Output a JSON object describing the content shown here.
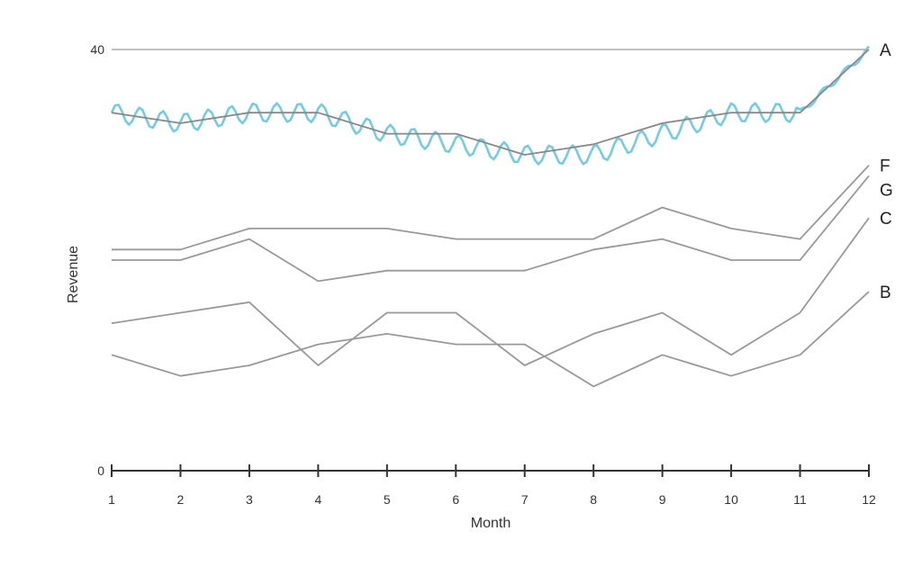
{
  "chart_data": {
    "type": "line",
    "xlabel": "Month",
    "ylabel": "Revenue",
    "xlim": [
      1,
      12
    ],
    "ylim": [
      0,
      40
    ],
    "x_ticks": [
      1,
      2,
      3,
      4,
      5,
      6,
      7,
      8,
      9,
      10,
      11,
      12
    ],
    "y_ticks": [
      0,
      40
    ],
    "grid": false,
    "legend": "none",
    "categories": [
      1,
      2,
      3,
      4,
      5,
      6,
      7,
      8,
      9,
      10,
      11,
      12
    ],
    "series": [
      {
        "name": "A",
        "color": "#888888",
        "values": [
          34,
          33,
          34,
          34,
          32,
          32,
          30,
          31,
          33,
          34,
          34,
          40
        ]
      },
      {
        "name": "F",
        "color": "#999999",
        "values": [
          21,
          21,
          23,
          23,
          23,
          22,
          22,
          22,
          25,
          23,
          22,
          29
        ]
      },
      {
        "name": "G",
        "color": "#999999",
        "values": [
          20,
          20,
          22,
          18,
          19,
          19,
          19,
          21,
          22,
          20,
          20,
          28
        ]
      },
      {
        "name": "C",
        "color": "#999999",
        "values": [
          14,
          15,
          16,
          10,
          15,
          15,
          10,
          13,
          15,
          11,
          15,
          24
        ]
      },
      {
        "name": "B",
        "color": "#999999",
        "values": [
          11,
          9,
          10,
          12,
          13,
          12,
          12,
          8,
          11,
          9,
          11,
          17
        ]
      }
    ],
    "overlay": {
      "color": "#5bc3dd",
      "values": [
        34,
        33,
        34,
        34,
        32,
        31,
        30,
        30,
        32,
        34,
        34,
        40
      ]
    }
  }
}
